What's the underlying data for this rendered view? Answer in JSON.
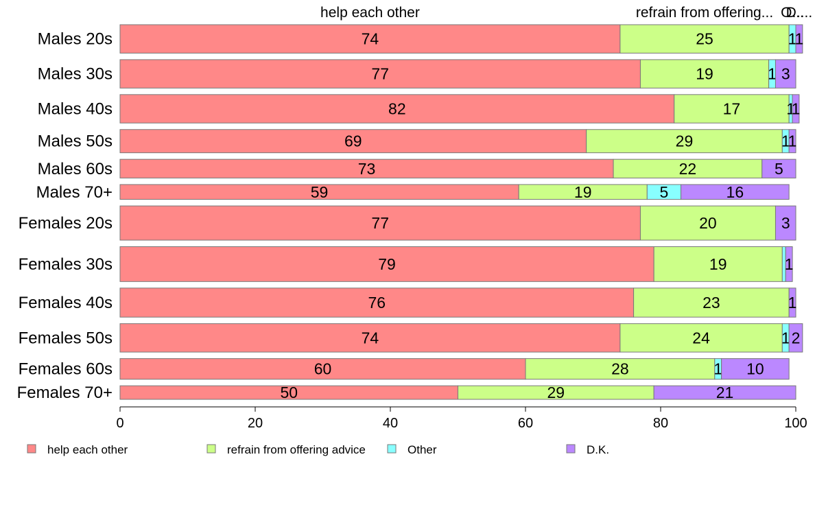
{
  "chart_data": {
    "type": "bar",
    "orientation": "horizontal",
    "stacked": true,
    "categories": [
      "Males 20s",
      "Males 30s",
      "Males 40s",
      "Males 50s",
      "Males 60s",
      "Males 70+",
      "Females 20s",
      "Females 30s",
      "Females 40s",
      "Females 50s",
      "Females 60s",
      "Females 70+"
    ],
    "bar_width_weights": [
      44,
      44,
      44,
      36,
      29,
      23,
      53,
      54,
      45,
      44,
      32,
      21
    ],
    "series": [
      {
        "name": "help each other",
        "color": "#ff8888",
        "values": [
          74,
          77,
          82,
          69,
          73,
          59,
          77,
          79,
          76,
          74,
          60,
          50
        ]
      },
      {
        "name": "refrain from offering advice",
        "color": "#ccff88",
        "values": [
          25,
          19,
          17,
          29,
          22,
          19,
          20,
          19,
          23,
          24,
          28,
          29
        ]
      },
      {
        "name": "Other",
        "color": "#88ffff",
        "values": [
          1,
          1,
          0.5,
          1,
          0,
          5,
          0,
          0.5,
          0,
          1,
          1,
          0
        ]
      },
      {
        "name": "D.K.",
        "color": "#bb88ff",
        "values": [
          1,
          3,
          1,
          1,
          5,
          16,
          3,
          1,
          1,
          2,
          10,
          21
        ]
      }
    ],
    "data_labels": [
      [
        "74",
        "25",
        "1",
        "1"
      ],
      [
        "77",
        "19",
        "1",
        "3"
      ],
      [
        "82",
        "17",
        "1",
        "1"
      ],
      [
        "69",
        "29",
        "1",
        "1"
      ],
      [
        "73",
        "22",
        "",
        "5"
      ],
      [
        "59",
        "19",
        "5",
        "16"
      ],
      [
        "77",
        "20",
        "",
        "3"
      ],
      [
        "79",
        "19",
        "",
        "1"
      ],
      [
        "76",
        "23",
        "",
        "1"
      ],
      [
        "74",
        "24",
        "1",
        "2"
      ],
      [
        "60",
        "28",
        "1",
        "10"
      ],
      [
        "50",
        "29",
        "",
        "21"
      ]
    ],
    "top_labels": [
      "help each other",
      "refrain from offering...",
      "O...",
      "D...."
    ],
    "xticks": [
      "0",
      "20",
      "40",
      "60",
      "80",
      "100"
    ],
    "xlim": [
      0,
      100
    ],
    "legend_position": "bottom",
    "grid": false
  }
}
